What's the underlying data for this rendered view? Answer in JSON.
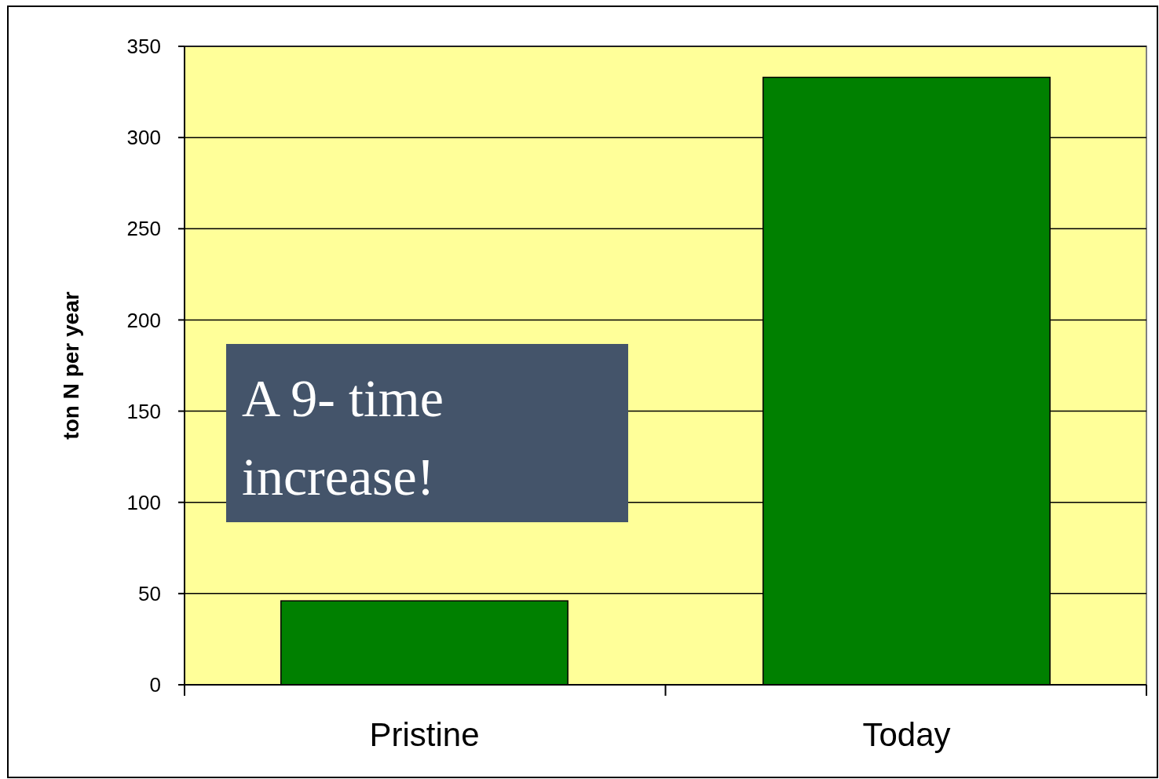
{
  "chart_data": {
    "type": "bar",
    "ylabel": "ton N per year",
    "categories": [
      "Pristine",
      "Today"
    ],
    "series": [
      {
        "color": "#008000",
        "values": [
          46,
          333
        ]
      }
    ],
    "ylim": [
      0,
      350
    ],
    "yticks": [
      0,
      50,
      100,
      150,
      200,
      250,
      300,
      350
    ],
    "grid": "y",
    "annotations": [
      "A 9- time increase!"
    ]
  }
}
